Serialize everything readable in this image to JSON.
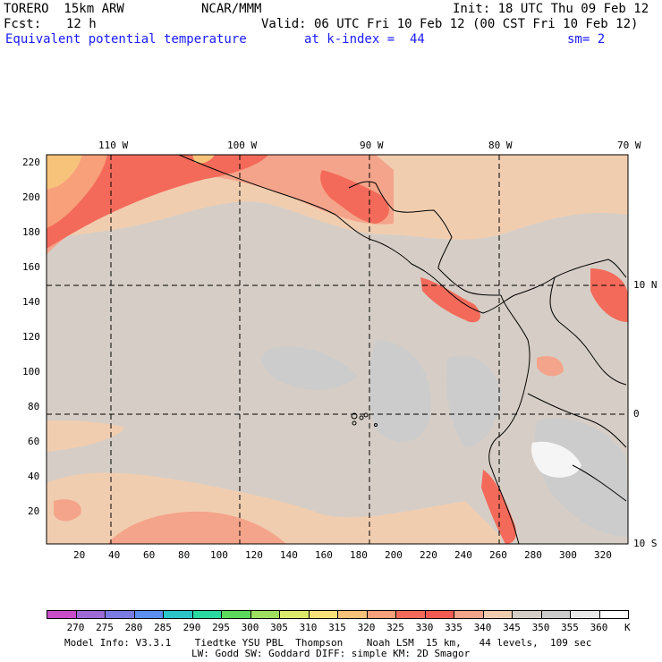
{
  "header": {
    "model": "TORERO  15km ARW",
    "org": "NCAR/MMM",
    "init": "Init: 18 UTC Thu 09 Feb 12",
    "fcst_label": "Fcst:",
    "fcst_value": "12 h",
    "valid": "Valid: 06 UTC Fri 10 Feb 12 (00 CST Fri 10 Feb 12)",
    "field": "Equivalent potential temperature",
    "level": "at k-index =  44",
    "smoothing": "sm= 2"
  },
  "map": {
    "lon_labels": [
      "110 W",
      "100 W",
      "90 W",
      "80 W",
      "70 W"
    ],
    "lat_labels": [
      "10 N",
      "0",
      "10 S"
    ],
    "y_ticks": [
      "220",
      "200",
      "180",
      "160",
      "140",
      "120",
      "100",
      "80",
      "60",
      "40",
      "20"
    ],
    "x_ticks": [
      "20",
      "40",
      "60",
      "80",
      "100",
      "120",
      "140",
      "160",
      "180",
      "200",
      "220",
      "240",
      "260",
      "280",
      "300",
      "320"
    ]
  },
  "colorbar": {
    "labels": [
      "270",
      "275",
      "280",
      "285",
      "290",
      "295",
      "300",
      "305",
      "310",
      "315",
      "320",
      "325",
      "330",
      "335",
      "340",
      "345",
      "350",
      "355",
      "360"
    ],
    "unit": "K",
    "colors": [
      "#c94cc9",
      "#9e6bd6",
      "#7b7be6",
      "#5c8ef0",
      "#2cc6c6",
      "#29d9a0",
      "#5cd95c",
      "#a0e060",
      "#dcea6c",
      "#f5e07a",
      "#f7c27a",
      "#f7a07a",
      "#f46a5a",
      "#f25a52",
      "#f4a48a",
      "#f1cdb0",
      "#d6cec6",
      "#cccccc",
      "#e8e8e8",
      "#ffffff"
    ]
  },
  "footer": {
    "line1": "Model Info: V3.3.1    Tiedtke YSU PBL  Thompson    Noah LSM  15 km,   44 levels,  109 sec",
    "line2": "LW: Godd SW: Goddard DIFF: simple KM: 2D Smagor"
  },
  "colors": {
    "ocean_base": "#d6cec6",
    "grey_zone": "#cccccc",
    "warm": "#f1cdb0",
    "salmon": "#f4a48a",
    "red": "#f46a5a",
    "orange": "#f7a07a",
    "yellow": "#f7c27a",
    "white_zone": "#f5f5f5"
  }
}
